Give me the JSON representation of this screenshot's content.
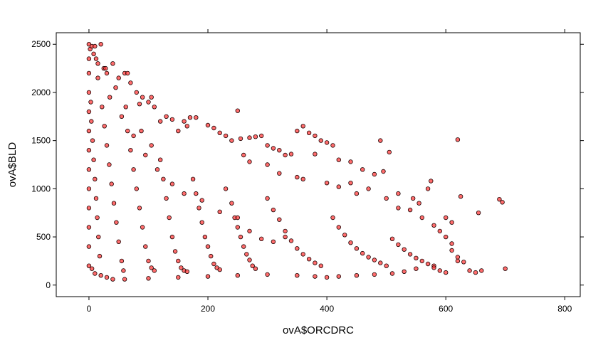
{
  "chart_data": {
    "type": "scatter",
    "title": "",
    "xlabel": "ovA$ORCDRC",
    "ylabel": "ovA$BLD",
    "xlim": [
      -55,
      826
    ],
    "ylim": [
      -120,
      2620
    ],
    "xticks": [
      0,
      200,
      400,
      600,
      800
    ],
    "yticks": [
      0,
      500,
      1000,
      1500,
      2000,
      2500
    ],
    "grid": false,
    "legend": "none",
    "marker": {
      "shape": "circle",
      "fill": "#ff3b3b",
      "fill_opacity": 0.75,
      "stroke": "#1a0000"
    },
    "series": [
      {
        "points": [
          [
            0,
            2500
          ],
          [
            2,
            2450
          ],
          [
            5,
            2480
          ],
          [
            8,
            2400
          ],
          [
            10,
            2480
          ],
          [
            20,
            2500
          ],
          [
            12,
            2350
          ],
          [
            15,
            2300
          ],
          [
            25,
            2250
          ],
          [
            30,
            2200
          ],
          [
            40,
            2300
          ],
          [
            60,
            2200
          ],
          [
            65,
            2200
          ],
          [
            50,
            2150
          ],
          [
            70,
            2100
          ],
          [
            80,
            2000
          ],
          [
            90,
            1950
          ],
          [
            105,
            1950
          ],
          [
            100,
            1900
          ],
          [
            85,
            1880
          ],
          [
            110,
            1850
          ],
          [
            120,
            1700
          ],
          [
            130,
            1750
          ],
          [
            140,
            1720
          ],
          [
            160,
            1700
          ],
          [
            170,
            1740
          ],
          [
            180,
            1740
          ],
          [
            165,
            1650
          ],
          [
            150,
            1600
          ],
          [
            200,
            1660
          ],
          [
            210,
            1630
          ],
          [
            220,
            1580
          ],
          [
            230,
            1550
          ],
          [
            240,
            1500
          ],
          [
            250,
            1810
          ],
          [
            255,
            1520
          ],
          [
            270,
            1530
          ],
          [
            280,
            1540
          ],
          [
            290,
            1550
          ],
          [
            300,
            1450
          ],
          [
            310,
            1420
          ],
          [
            320,
            1400
          ],
          [
            330,
            1350
          ],
          [
            340,
            1360
          ],
          [
            350,
            1600
          ],
          [
            360,
            1650
          ],
          [
            370,
            1580
          ],
          [
            380,
            1550
          ],
          [
            390,
            1500
          ],
          [
            400,
            1480
          ],
          [
            410,
            1450
          ],
          [
            420,
            1300
          ],
          [
            440,
            1280
          ],
          [
            460,
            1200
          ],
          [
            480,
            1150
          ],
          [
            495,
            1180
          ],
          [
            440,
            1060
          ],
          [
            470,
            1000
          ],
          [
            520,
            950
          ],
          [
            545,
            900
          ],
          [
            555,
            850
          ],
          [
            570,
            1000
          ],
          [
            575,
            1080
          ],
          [
            600,
            700
          ],
          [
            610,
            650
          ],
          [
            620,
            1510
          ],
          [
            625,
            920
          ],
          [
            655,
            750
          ],
          [
            690,
            890
          ],
          [
            695,
            860
          ],
          [
            490,
            1500
          ],
          [
            505,
            1380
          ],
          [
            380,
            1360
          ],
          [
            300,
            1250
          ],
          [
            260,
            1350
          ],
          [
            270,
            1280
          ],
          [
            320,
            1160
          ],
          [
            350,
            1120
          ],
          [
            360,
            1100
          ],
          [
            400,
            1060
          ],
          [
            420,
            1020
          ],
          [
            450,
            950
          ],
          [
            500,
            900
          ],
          [
            520,
            800
          ],
          [
            540,
            780
          ],
          [
            560,
            700
          ],
          [
            580,
            620
          ],
          [
            590,
            560
          ],
          [
            600,
            500
          ],
          [
            610,
            430
          ],
          [
            610,
            360
          ],
          [
            620,
            290
          ],
          [
            630,
            240
          ],
          [
            640,
            150
          ],
          [
            650,
            130
          ],
          [
            660,
            150
          ],
          [
            700,
            170
          ],
          [
            620,
            250
          ],
          [
            580,
            200
          ],
          [
            550,
            170
          ],
          [
            530,
            140
          ],
          [
            510,
            120
          ],
          [
            480,
            110
          ],
          [
            450,
            100
          ],
          [
            420,
            90
          ],
          [
            400,
            80
          ],
          [
            380,
            90
          ],
          [
            350,
            100
          ],
          [
            300,
            110
          ],
          [
            250,
            100
          ],
          [
            200,
            90
          ],
          [
            150,
            80
          ],
          [
            100,
            70
          ],
          [
            60,
            60
          ],
          [
            40,
            60
          ],
          [
            30,
            80
          ],
          [
            20,
            100
          ],
          [
            10,
            120
          ],
          [
            5,
            170
          ],
          [
            0,
            200
          ],
          [
            0,
            400
          ],
          [
            0,
            600
          ],
          [
            0,
            800
          ],
          [
            0,
            1000
          ],
          [
            0,
            1200
          ],
          [
            0,
            1400
          ],
          [
            0,
            1600
          ],
          [
            0,
            1800
          ],
          [
            0,
            2000
          ],
          [
            0,
            2200
          ],
          [
            0,
            2350
          ],
          [
            3,
            1900
          ],
          [
            4,
            1700
          ],
          [
            6,
            1500
          ],
          [
            8,
            1300
          ],
          [
            10,
            1100
          ],
          [
            12,
            900
          ],
          [
            14,
            700
          ],
          [
            16,
            500
          ],
          [
            18,
            300
          ],
          [
            22,
            1850
          ],
          [
            26,
            1650
          ],
          [
            30,
            1450
          ],
          [
            34,
            1250
          ],
          [
            38,
            1050
          ],
          [
            42,
            850
          ],
          [
            46,
            650
          ],
          [
            50,
            450
          ],
          [
            55,
            250
          ],
          [
            58,
            150
          ],
          [
            65,
            1600
          ],
          [
            70,
            1400
          ],
          [
            75,
            1200
          ],
          [
            80,
            1000
          ],
          [
            85,
            800
          ],
          [
            90,
            600
          ],
          [
            95,
            400
          ],
          [
            100,
            250
          ],
          [
            105,
            180
          ],
          [
            110,
            150
          ],
          [
            120,
            1300
          ],
          [
            125,
            1100
          ],
          [
            130,
            900
          ],
          [
            135,
            700
          ],
          [
            140,
            500
          ],
          [
            145,
            350
          ],
          [
            150,
            250
          ],
          [
            155,
            180
          ],
          [
            160,
            150
          ],
          [
            165,
            140
          ],
          [
            175,
            1100
          ],
          [
            180,
            950
          ],
          [
            185,
            800
          ],
          [
            190,
            650
          ],
          [
            195,
            500
          ],
          [
            200,
            400
          ],
          [
            205,
            300
          ],
          [
            210,
            220
          ],
          [
            215,
            180
          ],
          [
            220,
            160
          ],
          [
            230,
            1000
          ],
          [
            240,
            850
          ],
          [
            245,
            700
          ],
          [
            250,
            600
          ],
          [
            255,
            500
          ],
          [
            260,
            400
          ],
          [
            265,
            320
          ],
          [
            270,
            260
          ],
          [
            275,
            200
          ],
          [
            280,
            170
          ],
          [
            300,
            900
          ],
          [
            310,
            780
          ],
          [
            320,
            680
          ],
          [
            330,
            560
          ],
          [
            340,
            460
          ],
          [
            350,
            380
          ],
          [
            360,
            320
          ],
          [
            370,
            270
          ],
          [
            380,
            230
          ],
          [
            390,
            200
          ],
          [
            410,
            700
          ],
          [
            420,
            600
          ],
          [
            430,
            520
          ],
          [
            440,
            440
          ],
          [
            450,
            380
          ],
          [
            460,
            330
          ],
          [
            470,
            290
          ],
          [
            480,
            260
          ],
          [
            490,
            230
          ],
          [
            500,
            200
          ],
          [
            510,
            480
          ],
          [
            520,
            420
          ],
          [
            530,
            370
          ],
          [
            540,
            320
          ],
          [
            550,
            280
          ],
          [
            560,
            250
          ],
          [
            570,
            220
          ],
          [
            580,
            180
          ],
          [
            590,
            150
          ],
          [
            600,
            130
          ],
          [
            290,
            480
          ],
          [
            310,
            450
          ],
          [
            330,
            500
          ],
          [
            270,
            560
          ],
          [
            250,
            700
          ],
          [
            220,
            760
          ],
          [
            190,
            880
          ],
          [
            160,
            950
          ],
          [
            140,
            1050
          ],
          [
            115,
            1200
          ],
          [
            95,
            1350
          ],
          [
            75,
            1550
          ],
          [
            55,
            1750
          ],
          [
            35,
            1950
          ],
          [
            15,
            2150
          ],
          [
            45,
            2050
          ],
          [
            28,
            2250
          ],
          [
            62,
            1850
          ],
          [
            88,
            1600
          ],
          [
            105,
            1450
          ]
        ]
      }
    ]
  }
}
